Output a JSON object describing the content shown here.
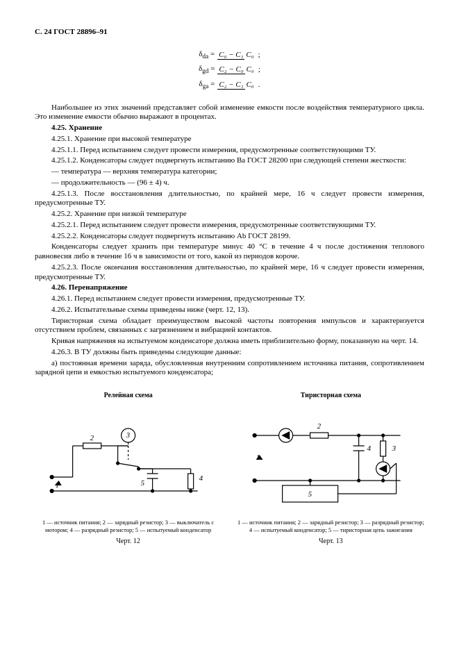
{
  "header": "С. 24 ГОСТ 28896–91",
  "formulas": [
    {
      "lhs": "δ",
      "sub": "da",
      "num": "C₀ − C₁",
      "den": "C₀"
    },
    {
      "lhs": "δ",
      "sub": "gd",
      "num": "C₂ − C₀",
      "den": "C₀"
    },
    {
      "lhs": "δ",
      "sub": "ga",
      "num": "C₂ − C₁",
      "den": "C₀"
    }
  ],
  "paragraphs": [
    {
      "text": "Наибольшее из этих значений представляет собой изменение емкости после воздействия температурного цикла. Это изменение емкости обычно выражают в процентах.",
      "indent": true
    },
    {
      "text": "4.25. Хранение",
      "bold": true,
      "indent": true
    },
    {
      "text": "4.25.1. Хранение при высокой температуре",
      "indent": true
    },
    {
      "text": "4.25.1.1. Перед испытанием следует провести измерения, предусмотренные соответствующими ТУ.",
      "indent": true
    },
    {
      "text": "4.25.1.2. Конденсаторы следует подвергнуть испытанию Ba ГОСТ 28200 при следующей степени жесткости:",
      "indent": true
    },
    {
      "text": "— температура — верхняя температура категории;",
      "indent": true
    },
    {
      "text": "— продолжительность — (96 ± 4) ч.",
      "indent": true
    },
    {
      "text": "4.25.1.3. После восстановления длительностью, по крайней мере, 16 ч следует провести измерения, предусмотренные ТУ.",
      "indent": true
    },
    {
      "text": "4.25.2. Хранение при низкой температуре",
      "indent": true
    },
    {
      "text": "4.25.2.1. Перед испытанием следует провести измерения, предусмотренные соответствующими ТУ.",
      "indent": true
    },
    {
      "text": "4.25.2.2. Конденсаторы следует подвергнуть испытанию Ab ГОСТ 28199.",
      "indent": true
    },
    {
      "text": "Конденсаторы следует хранить при температуре минус 40 °С в течение 4 ч после достижения теплового равновесия либо в течение 16 ч в зависимости от того, какой из периодов короче.",
      "indent": true
    },
    {
      "text": "4.25.2.3. После окончания восстановления длительностью, по крайней мере, 16 ч следует провести измерения, предусмотренные ТУ.",
      "indent": true
    },
    {
      "text": "4.26. Перенапряжение",
      "bold": true,
      "indent": true
    },
    {
      "text": "4.26.1. Перед испытанием следует провести измерения, предусмотренные ТУ.",
      "indent": true
    },
    {
      "text": "4.26.2. Испытательные схемы приведены ниже (черт. 12, 13).",
      "indent": true
    },
    {
      "text": "Тиристорная схема обладает преимуществом высокой частоты повторения импульсов и характеризуется отсутствием проблем, связанных с загрязнением и вибрацией контактов.",
      "indent": true
    },
    {
      "text": "Кривая напряжения на испытуемом конденсаторе должна иметь приблизительно форму, показанную на черт. 14.",
      "indent": true
    },
    {
      "text": "4.26.3. В ТУ должны быть приведены следующие данные:",
      "indent": true
    },
    {
      "text": "а) постоянная времени заряда, обусловленная внутренним сопротивлением источника питания, сопротивлением зарядной цепи и емкостью испытуемого конденсатора;",
      "indent": true
    }
  ],
  "diagrams": {
    "left": {
      "title": "Релейная схема",
      "caption": "1 — источник питания; 2 — зарядный резистор; 3 — выключатель с мотором; 4 — разрядный резистор; 5 — испытуемый конденсатор",
      "fig": "Черт. 12",
      "labels": {
        "n1": "1",
        "n2": "2",
        "n3": "3",
        "n4": "4",
        "n5": "5"
      }
    },
    "right": {
      "title": "Тиристорная схема",
      "caption": "1 — источник питания; 2 — зарядный резистор; 3 — разрядный резистор; 4 — испытуемый конденсатор; 5 — тиристорная цепь зажигания",
      "fig": "Черт. 13",
      "labels": {
        "n1": "1",
        "n2": "2",
        "n3": "3",
        "n4": "4",
        "n5": "5"
      }
    }
  }
}
